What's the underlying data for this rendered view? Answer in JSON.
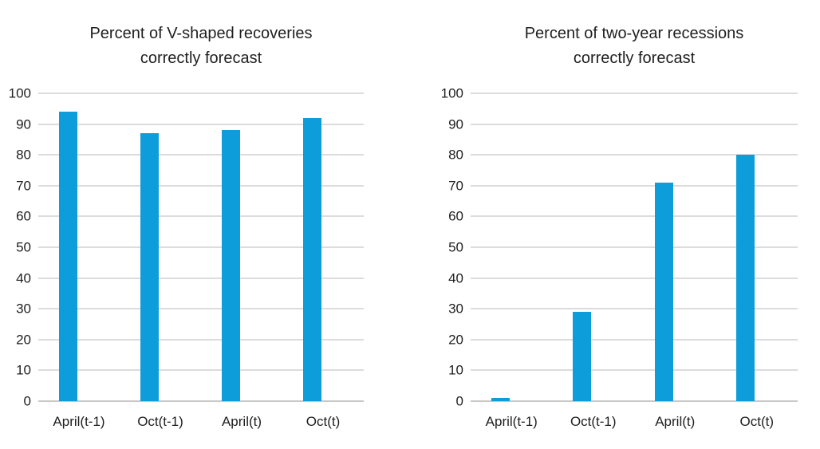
{
  "styles": {
    "background": "#FFFFFF",
    "bar_color": "#0D9DDB",
    "grid_color": "#DCDCDC",
    "zero_line_color": "#C8C8C8",
    "text_color": "#1F1F1F"
  },
  "chart_data": [
    {
      "type": "bar",
      "title": "Percent of V-shaped recoveries correctly forecast",
      "title_lines": [
        "Percent of V-shaped recoveries",
        "correctly forecast"
      ],
      "categories": [
        "April(t-1)",
        "Oct(t-1)",
        "April(t)",
        "Oct(t)"
      ],
      "values": [
        94,
        87,
        88,
        92
      ],
      "xlabel": "",
      "ylabel": "",
      "ylim": [
        0,
        100
      ],
      "yticks": [
        0,
        10,
        20,
        30,
        40,
        50,
        60,
        70,
        80,
        90,
        100
      ],
      "grid": "horizontal",
      "legend": "none",
      "bar_color": "#0D9DDB"
    },
    {
      "type": "bar",
      "title": "Percent of two-year recessions correctly forecast",
      "title_lines": [
        "Percent of two-year recessions",
        "correctly forecast"
      ],
      "categories": [
        "April(t-1)",
        "Oct(t-1)",
        "April(t)",
        "Oct(t)"
      ],
      "values": [
        1,
        29,
        71,
        80
      ],
      "xlabel": "",
      "ylabel": "",
      "ylim": [
        0,
        100
      ],
      "yticks": [
        0,
        10,
        20,
        30,
        40,
        50,
        60,
        70,
        80,
        90,
        100
      ],
      "grid": "horizontal",
      "legend": "none",
      "bar_color": "#0D9DDB"
    }
  ]
}
